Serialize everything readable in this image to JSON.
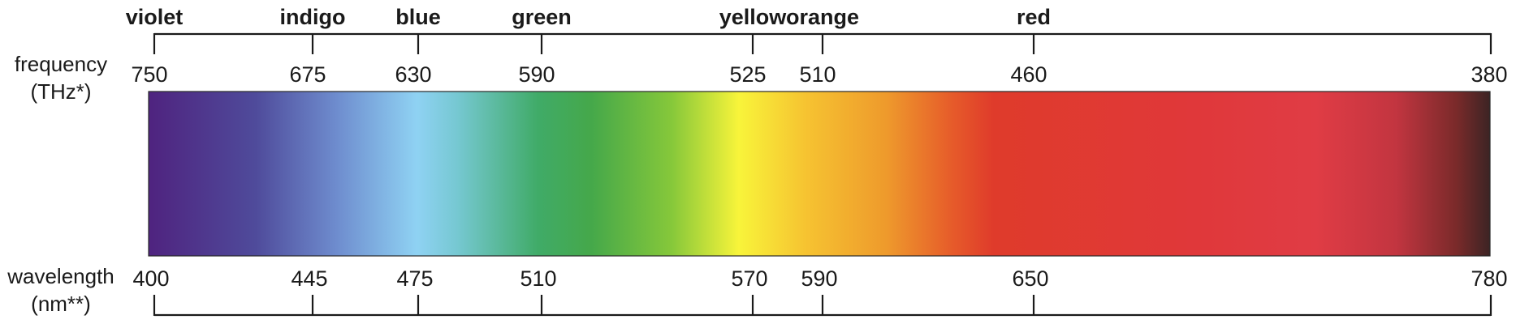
{
  "frequency_label": [
    "frequency",
    "(THz*)"
  ],
  "wavelength_label": [
    "wavelength",
    "(nm**)"
  ],
  "colors": [
    {
      "name": "violet",
      "frequency": "750",
      "wavelength": "400"
    },
    {
      "name": "indigo",
      "frequency": "675",
      "wavelength": "445"
    },
    {
      "name": "blue",
      "frequency": "630",
      "wavelength": "475"
    },
    {
      "name": "green",
      "frequency": "590",
      "wavelength": "510"
    },
    {
      "name": "yellow",
      "frequency": "525",
      "wavelength": "570"
    },
    {
      "name": "orange",
      "frequency": "510",
      "wavelength": "590"
    },
    {
      "name": "red",
      "frequency": "460",
      "wavelength": "650"
    }
  ],
  "end": {
    "frequency": "380",
    "wavelength": "780"
  },
  "spectrum_colors": [
    {
      "stop": 0.0,
      "color": "#4f237f"
    },
    {
      "stop": 0.08,
      "color": "#4f4b9b"
    },
    {
      "stop": 0.14,
      "color": "#6e8cce"
    },
    {
      "stop": 0.2,
      "color": "#8fd2f3"
    },
    {
      "stop": 0.23,
      "color": "#76c8d2"
    },
    {
      "stop": 0.29,
      "color": "#40ab68"
    },
    {
      "stop": 0.33,
      "color": "#45a84a"
    },
    {
      "stop": 0.39,
      "color": "#86c83a"
    },
    {
      "stop": 0.44,
      "color": "#f8f43a"
    },
    {
      "stop": 0.49,
      "color": "#f6c331"
    },
    {
      "stop": 0.55,
      "color": "#ee9a2c"
    },
    {
      "stop": 0.6,
      "color": "#e65a2a"
    },
    {
      "stop": 0.63,
      "color": "#df3b2b"
    },
    {
      "stop": 0.78,
      "color": "#e0383a"
    },
    {
      "stop": 0.87,
      "color": "#e03c45"
    },
    {
      "stop": 0.93,
      "color": "#c23540"
    },
    {
      "stop": 0.975,
      "color": "#7a2a2a"
    },
    {
      "stop": 1.0,
      "color": "#3c2424"
    }
  ]
}
